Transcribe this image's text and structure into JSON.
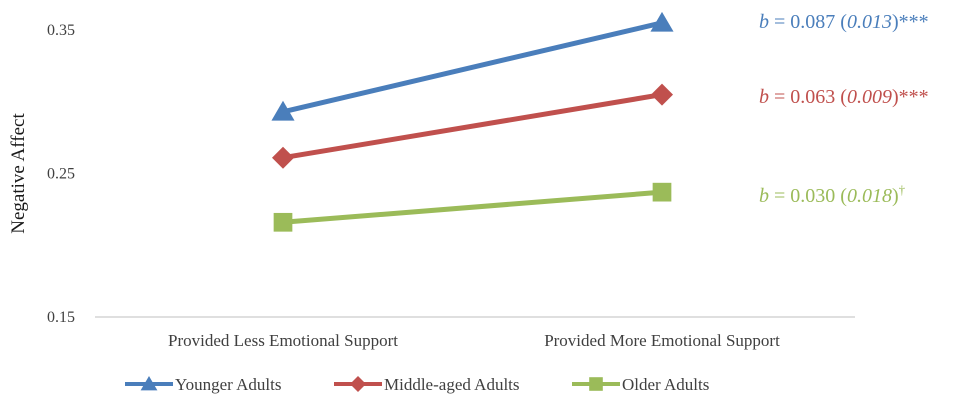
{
  "chart_data": {
    "type": "line",
    "title": "",
    "xlabel": "",
    "ylabel": "Negative Affect",
    "ylim": [
      0.15,
      0.35
    ],
    "yticks": [
      {
        "value": 0.15,
        "label": "0.15"
      },
      {
        "value": 0.25,
        "label": "0.25"
      },
      {
        "value": 0.35,
        "label": "0.35"
      }
    ],
    "grid": false,
    "legend_position": "bottom",
    "categories": [
      "Provided Less Emotional Support",
      "Provided More Emotional Support"
    ],
    "series": [
      {
        "name": "Younger Adults",
        "values": [
          0.293,
          0.355
        ],
        "color": "#4a7ebb",
        "marker": "triangle",
        "annotation": {
          "prefix": "b",
          "value": " = 0.087 (",
          "se": "0.013",
          "suffix": ")",
          "sig": "***"
        }
      },
      {
        "name": "Middle-aged Adults",
        "values": [
          0.261,
          0.305
        ],
        "color": "#c0504d",
        "marker": "diamond",
        "annotation": {
          "prefix": "b",
          "value": " = 0.063 (",
          "se": "0.009",
          "suffix": ")",
          "sig": "***"
        }
      },
      {
        "name": "Older Adults",
        "values": [
          0.216,
          0.237
        ],
        "color": "#9bbb59",
        "marker": "square",
        "annotation": {
          "prefix": "b",
          "value": " = 0.030 (",
          "se": "0.018",
          "suffix": ")",
          "sig": "†"
        }
      }
    ]
  }
}
